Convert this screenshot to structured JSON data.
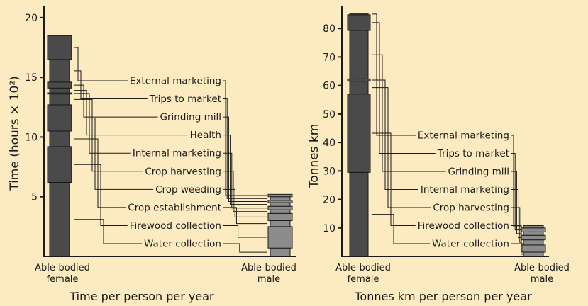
{
  "colors": {
    "background": "#fcebc0",
    "female_bar": "#4a4a4a",
    "male_bar": "#8c8c8c",
    "outline": "#1a1a1a"
  },
  "chart_data": [
    {
      "type": "bar",
      "subtype": "stacked",
      "caption": "Time per person per year",
      "ylabel": "Time (hours × 10²)",
      "ylim": [
        0,
        21
      ],
      "yticks": [
        5,
        10,
        15,
        20
      ],
      "categories": [
        "Able-bodied\nfemale",
        "Able-bodied\nmale"
      ],
      "series": [
        {
          "name": "Water collection",
          "values": [
            6.2,
            0.7
          ]
        },
        {
          "name": "Firewood collection",
          "values": [
            3.0,
            1.8
          ]
        },
        {
          "name": "Crop establishment",
          "values": [
            1.3,
            0.5
          ]
        },
        {
          "name": "Crop weeding",
          "values": [
            2.2,
            0.6
          ]
        },
        {
          "name": "Crop harvesting",
          "values": [
            0.9,
            0.3
          ]
        },
        {
          "name": "Internal marketing",
          "values": [
            0.1,
            0.3
          ]
        },
        {
          "name": "Health",
          "values": [
            0.4,
            0.3
          ]
        },
        {
          "name": "Grinding mill",
          "values": [
            0.5,
            0.2
          ]
        },
        {
          "name": "Trips to market",
          "values": [
            1.9,
            0.3
          ]
        },
        {
          "name": "External marketing",
          "values": [
            2.0,
            0.2
          ]
        }
      ]
    },
    {
      "type": "bar",
      "subtype": "stacked",
      "caption": "Tonnes km per person per year",
      "ylabel": "Tonnes km",
      "ylim": [
        0,
        88
      ],
      "yticks": [
        10,
        20,
        30,
        40,
        50,
        60,
        70,
        80
      ],
      "categories": [
        "Able-bodied\nfemale",
        "Able-bodied\nmale"
      ],
      "series": [
        {
          "name": "Water collection",
          "values": [
            29.5,
            1.5
          ]
        },
        {
          "name": "Firewood collection",
          "values": [
            27.5,
            2.5
          ]
        },
        {
          "name": "Crop harvesting",
          "values": [
            4.5,
            1.8
          ]
        },
        {
          "name": "Internal marketing",
          "values": [
            0.8,
            1.6
          ]
        },
        {
          "name": "Grinding mill",
          "values": [
            17.0,
            1.2
          ]
        },
        {
          "name": "Trips to market",
          "values": [
            5.5,
            1.4
          ]
        },
        {
          "name": "External marketing",
          "values": [
            0.5,
            0.8
          ]
        }
      ]
    }
  ]
}
